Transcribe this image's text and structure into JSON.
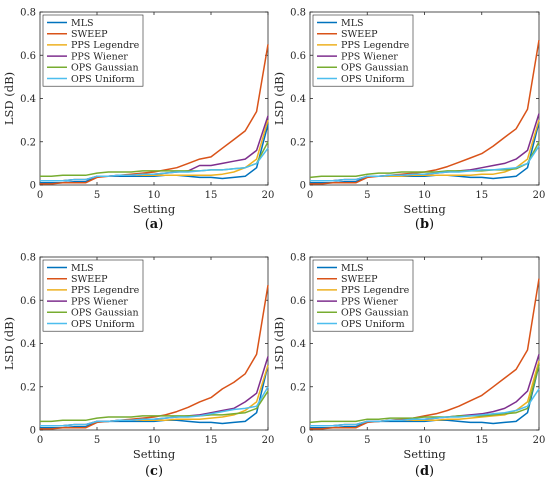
{
  "series_styles": [
    {
      "name": "MLS",
      "color": "#0072BD"
    },
    {
      "name": "SWEEP",
      "color": "#D95319"
    },
    {
      "name": "PPS Legendre",
      "color": "#EDB120"
    },
    {
      "name": "PPS Wiener",
      "color": "#7E2F8E"
    },
    {
      "name": "OPS Gaussian",
      "color": "#77AC30"
    },
    {
      "name": "OPS Uniform",
      "color": "#4DBEEE"
    }
  ],
  "chart_data": [
    {
      "type": "line",
      "caption_letter": "a",
      "xlabel": "Setting",
      "ylabel": "LSD (dB)",
      "xlim": [
        0,
        20
      ],
      "ylim": [
        0,
        0.8
      ],
      "xticks": [
        0,
        5,
        10,
        15,
        20
      ],
      "yticks": [
        0,
        0.2,
        0.4,
        0.6,
        0.8
      ],
      "ytick_labels": [
        "0",
        "0.2",
        "0.4",
        "0.6",
        "0.8"
      ],
      "legend": "top-left",
      "x": [
        0,
        1,
        2,
        3,
        4,
        5,
        6,
        7,
        8,
        9,
        10,
        11,
        12,
        13,
        14,
        15,
        16,
        17,
        18,
        19,
        20
      ],
      "series": [
        {
          "name": "MLS",
          "values": [
            0.01,
            0.01,
            0.01,
            0.015,
            0.015,
            0.04,
            0.04,
            0.04,
            0.04,
            0.04,
            0.04,
            0.045,
            0.045,
            0.04,
            0.035,
            0.035,
            0.03,
            0.035,
            0.04,
            0.08,
            0.28
          ]
        },
        {
          "name": "SWEEP",
          "values": [
            0.005,
            0.005,
            0.01,
            0.01,
            0.01,
            0.035,
            0.04,
            0.045,
            0.05,
            0.055,
            0.06,
            0.07,
            0.08,
            0.1,
            0.12,
            0.13,
            0.17,
            0.21,
            0.25,
            0.34,
            0.65
          ]
        },
        {
          "name": "PPS Legendre",
          "values": [
            0.02,
            0.02,
            0.02,
            0.025,
            0.025,
            0.04,
            0.04,
            0.045,
            0.045,
            0.045,
            0.045,
            0.045,
            0.045,
            0.045,
            0.045,
            0.045,
            0.05,
            0.06,
            0.08,
            0.12,
            0.3
          ]
        },
        {
          "name": "PPS Wiener",
          "values": [
            0.02,
            0.02,
            0.02,
            0.025,
            0.025,
            0.04,
            0.04,
            0.045,
            0.045,
            0.05,
            0.05,
            0.055,
            0.06,
            0.065,
            0.09,
            0.09,
            0.1,
            0.11,
            0.12,
            0.16,
            0.32
          ]
        },
        {
          "name": "OPS Gaussian",
          "values": [
            0.04,
            0.04,
            0.045,
            0.045,
            0.045,
            0.055,
            0.06,
            0.06,
            0.06,
            0.065,
            0.065,
            0.065,
            0.065,
            0.065,
            0.065,
            0.07,
            0.07,
            0.075,
            0.08,
            0.1,
            0.2
          ]
        },
        {
          "name": "OPS Uniform",
          "values": [
            0.02,
            0.02,
            0.02,
            0.025,
            0.025,
            0.04,
            0.04,
            0.045,
            0.045,
            0.05,
            0.05,
            0.055,
            0.06,
            0.06,
            0.065,
            0.07,
            0.07,
            0.075,
            0.08,
            0.1,
            0.17
          ]
        }
      ]
    },
    {
      "type": "line",
      "caption_letter": "b",
      "xlabel": "Setting",
      "ylabel": "LSD (dB)",
      "xlim": [
        0,
        20
      ],
      "ylim": [
        0,
        0.8
      ],
      "xticks": [
        0,
        5,
        10,
        15,
        20
      ],
      "yticks": [
        0,
        0.2,
        0.4,
        0.6,
        0.8
      ],
      "ytick_labels": [
        "0",
        "0.2",
        "0.4",
        "0.6",
        "0.8"
      ],
      "legend": "top-left",
      "x": [
        0,
        1,
        2,
        3,
        4,
        5,
        6,
        7,
        8,
        9,
        10,
        11,
        12,
        13,
        14,
        15,
        16,
        17,
        18,
        19,
        20
      ],
      "series": [
        {
          "name": "MLS",
          "values": [
            0.01,
            0.01,
            0.01,
            0.015,
            0.015,
            0.04,
            0.04,
            0.04,
            0.04,
            0.04,
            0.04,
            0.045,
            0.045,
            0.04,
            0.035,
            0.035,
            0.03,
            0.035,
            0.04,
            0.08,
            0.29
          ]
        },
        {
          "name": "SWEEP",
          "values": [
            0.005,
            0.005,
            0.01,
            0.01,
            0.01,
            0.035,
            0.04,
            0.045,
            0.05,
            0.055,
            0.06,
            0.07,
            0.085,
            0.105,
            0.125,
            0.145,
            0.18,
            0.22,
            0.26,
            0.35,
            0.67
          ]
        },
        {
          "name": "PPS Legendre",
          "values": [
            0.02,
            0.02,
            0.02,
            0.025,
            0.025,
            0.04,
            0.04,
            0.04,
            0.04,
            0.045,
            0.045,
            0.045,
            0.045,
            0.045,
            0.045,
            0.05,
            0.05,
            0.06,
            0.08,
            0.12,
            0.3
          ]
        },
        {
          "name": "PPS Wiener",
          "values": [
            0.02,
            0.02,
            0.02,
            0.025,
            0.025,
            0.04,
            0.04,
            0.045,
            0.045,
            0.05,
            0.05,
            0.055,
            0.06,
            0.065,
            0.07,
            0.08,
            0.09,
            0.1,
            0.12,
            0.16,
            0.33
          ]
        },
        {
          "name": "OPS Gaussian",
          "values": [
            0.035,
            0.04,
            0.04,
            0.04,
            0.04,
            0.05,
            0.055,
            0.055,
            0.06,
            0.06,
            0.06,
            0.06,
            0.065,
            0.065,
            0.065,
            0.065,
            0.07,
            0.07,
            0.075,
            0.1,
            0.2
          ]
        },
        {
          "name": "OPS Uniform",
          "values": [
            0.02,
            0.02,
            0.02,
            0.025,
            0.025,
            0.04,
            0.04,
            0.045,
            0.045,
            0.05,
            0.05,
            0.055,
            0.06,
            0.06,
            0.065,
            0.07,
            0.07,
            0.075,
            0.08,
            0.1,
            0.18
          ]
        }
      ]
    },
    {
      "type": "line",
      "caption_letter": "c",
      "xlabel": "Setting",
      "ylabel": "LSD (dB)",
      "xlim": [
        0,
        20
      ],
      "ylim": [
        0,
        0.8
      ],
      "xticks": [
        0,
        5,
        10,
        15,
        20
      ],
      "yticks": [
        0,
        0.2,
        0.4,
        0.6,
        0.8
      ],
      "ytick_labels": [
        "0",
        "0.2",
        "0.4",
        "0.6",
        "0.8"
      ],
      "legend": "top-left",
      "x": [
        0,
        1,
        2,
        3,
        4,
        5,
        6,
        7,
        8,
        9,
        10,
        11,
        12,
        13,
        14,
        15,
        16,
        17,
        18,
        19,
        20
      ],
      "series": [
        {
          "name": "MLS",
          "values": [
            0.01,
            0.01,
            0.01,
            0.015,
            0.015,
            0.04,
            0.04,
            0.04,
            0.04,
            0.04,
            0.04,
            0.045,
            0.045,
            0.04,
            0.035,
            0.035,
            0.03,
            0.035,
            0.04,
            0.08,
            0.3
          ]
        },
        {
          "name": "SWEEP",
          "values": [
            0.005,
            0.005,
            0.01,
            0.01,
            0.01,
            0.035,
            0.04,
            0.045,
            0.05,
            0.055,
            0.06,
            0.07,
            0.085,
            0.105,
            0.13,
            0.15,
            0.19,
            0.22,
            0.26,
            0.35,
            0.67
          ]
        },
        {
          "name": "PPS Legendre",
          "values": [
            0.02,
            0.02,
            0.02,
            0.025,
            0.025,
            0.04,
            0.04,
            0.045,
            0.045,
            0.045,
            0.045,
            0.045,
            0.05,
            0.05,
            0.05,
            0.055,
            0.06,
            0.07,
            0.09,
            0.13,
            0.3
          ]
        },
        {
          "name": "PPS Wiener",
          "values": [
            0.02,
            0.02,
            0.02,
            0.025,
            0.025,
            0.04,
            0.04,
            0.045,
            0.045,
            0.05,
            0.05,
            0.055,
            0.06,
            0.065,
            0.07,
            0.08,
            0.09,
            0.1,
            0.13,
            0.17,
            0.34
          ]
        },
        {
          "name": "OPS Gaussian",
          "values": [
            0.04,
            0.04,
            0.045,
            0.045,
            0.045,
            0.055,
            0.06,
            0.06,
            0.06,
            0.065,
            0.065,
            0.065,
            0.065,
            0.065,
            0.065,
            0.07,
            0.07,
            0.075,
            0.08,
            0.1,
            0.18
          ]
        },
        {
          "name": "OPS Uniform",
          "values": [
            0.02,
            0.02,
            0.02,
            0.025,
            0.025,
            0.04,
            0.04,
            0.045,
            0.045,
            0.05,
            0.05,
            0.055,
            0.06,
            0.06,
            0.065,
            0.075,
            0.085,
            0.095,
            0.1,
            0.11,
            0.2
          ]
        }
      ]
    },
    {
      "type": "line",
      "caption_letter": "d",
      "xlabel": "Setting",
      "ylabel": "LSD (dB)",
      "xlim": [
        0,
        20
      ],
      "ylim": [
        0,
        0.8
      ],
      "xticks": [
        0,
        5,
        10,
        15,
        20
      ],
      "yticks": [
        0,
        0.2,
        0.4,
        0.6,
        0.8
      ],
      "ytick_labels": [
        "0",
        "0.2",
        "0.4",
        "0.6",
        "0.8"
      ],
      "legend": "top-left",
      "x": [
        0,
        1,
        2,
        3,
        4,
        5,
        6,
        7,
        8,
        9,
        10,
        11,
        12,
        13,
        14,
        15,
        16,
        17,
        18,
        19,
        20
      ],
      "series": [
        {
          "name": "MLS",
          "values": [
            0.01,
            0.01,
            0.01,
            0.015,
            0.015,
            0.04,
            0.04,
            0.04,
            0.04,
            0.04,
            0.04,
            0.045,
            0.045,
            0.04,
            0.035,
            0.035,
            0.03,
            0.035,
            0.04,
            0.08,
            0.3
          ]
        },
        {
          "name": "SWEEP",
          "values": [
            0.005,
            0.005,
            0.01,
            0.01,
            0.01,
            0.035,
            0.04,
            0.045,
            0.05,
            0.055,
            0.065,
            0.075,
            0.09,
            0.11,
            0.135,
            0.16,
            0.2,
            0.24,
            0.28,
            0.37,
            0.7
          ]
        },
        {
          "name": "PPS Legendre",
          "values": [
            0.02,
            0.02,
            0.02,
            0.025,
            0.025,
            0.04,
            0.04,
            0.045,
            0.045,
            0.045,
            0.045,
            0.045,
            0.05,
            0.05,
            0.055,
            0.06,
            0.065,
            0.07,
            0.09,
            0.13,
            0.32
          ]
        },
        {
          "name": "PPS Wiener",
          "values": [
            0.02,
            0.02,
            0.02,
            0.025,
            0.025,
            0.04,
            0.04,
            0.045,
            0.045,
            0.05,
            0.05,
            0.055,
            0.06,
            0.065,
            0.07,
            0.075,
            0.085,
            0.1,
            0.13,
            0.18,
            0.35
          ]
        },
        {
          "name": "OPS Gaussian",
          "values": [
            0.035,
            0.04,
            0.04,
            0.04,
            0.04,
            0.05,
            0.05,
            0.055,
            0.055,
            0.055,
            0.06,
            0.06,
            0.06,
            0.065,
            0.065,
            0.065,
            0.07,
            0.075,
            0.08,
            0.1,
            0.3
          ]
        },
        {
          "name": "OPS Uniform",
          "values": [
            0.02,
            0.02,
            0.02,
            0.025,
            0.025,
            0.04,
            0.04,
            0.045,
            0.045,
            0.05,
            0.05,
            0.055,
            0.06,
            0.06,
            0.065,
            0.07,
            0.075,
            0.08,
            0.09,
            0.11,
            0.19
          ]
        }
      ]
    }
  ]
}
